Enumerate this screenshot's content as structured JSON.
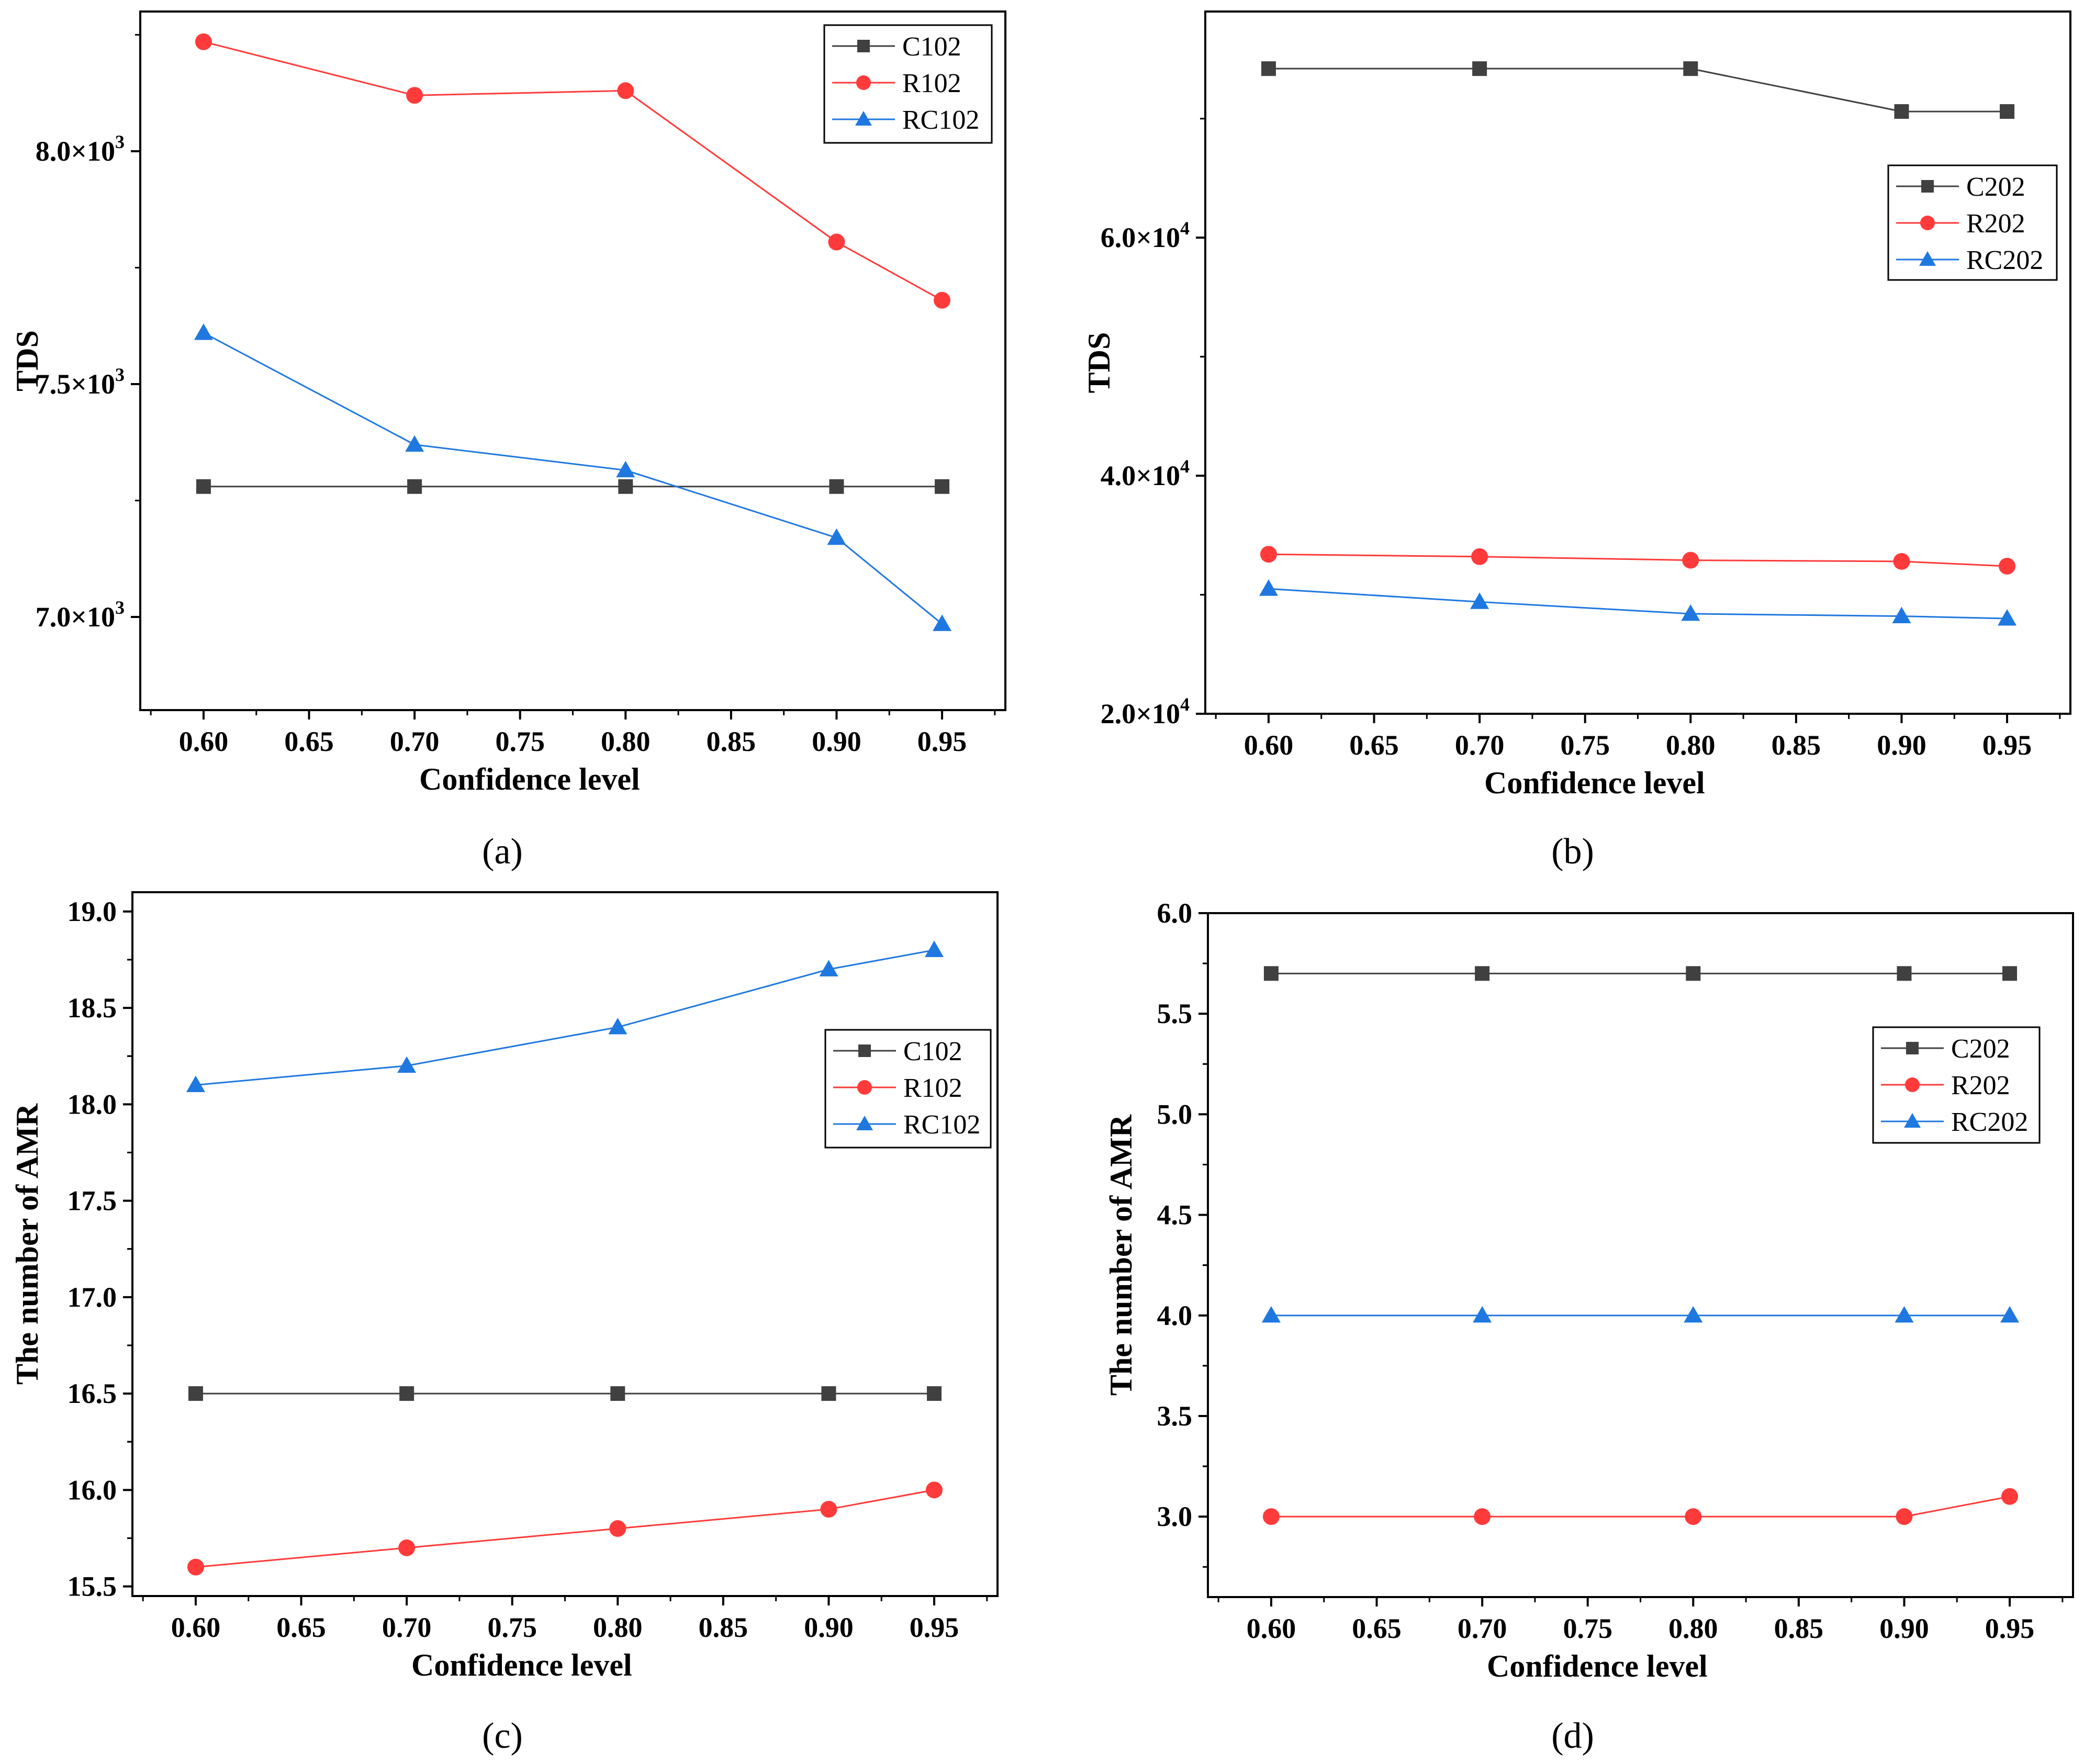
{
  "chart_data": [
    {
      "panel": "(a)",
      "type": "line",
      "xlabel": "Confidence level",
      "ylabel": "TDS",
      "x": [
        0.6,
        0.7,
        0.8,
        0.9,
        0.95
      ],
      "xlim": [
        0.57,
        0.98
      ],
      "xticks": [
        0.6,
        0.65,
        0.7,
        0.75,
        0.8,
        0.85,
        0.9,
        0.95
      ],
      "xtick_labels": [
        "0.60",
        "0.65",
        "0.70",
        "0.75",
        "0.80",
        "0.85",
        "0.90",
        "0.95"
      ],
      "ylim": [
        6800,
        8300
      ],
      "yticks": [
        7000,
        7500,
        8000
      ],
      "ytick_labels": [
        {
          "m": "7.0×10",
          "e": "3"
        },
        {
          "m": "7.5×10",
          "e": "3"
        },
        {
          "m": "8.0×10",
          "e": "3"
        }
      ],
      "legend_position": "top-right",
      "series": [
        {
          "name": "C102",
          "color": "#404040",
          "marker": "square",
          "values": [
            7280,
            7280,
            7280,
            7280,
            7280
          ]
        },
        {
          "name": "R102",
          "color": "#ff3a3a",
          "marker": "circle",
          "values": [
            8235,
            8120,
            8130,
            7805,
            7680
          ]
        },
        {
          "name": "RC102",
          "color": "#1f78e0",
          "marker": "triangle",
          "values": [
            7610,
            7370,
            7315,
            7170,
            6985
          ]
        }
      ]
    },
    {
      "panel": "(b)",
      "type": "line",
      "xlabel": "Confidence level",
      "ylabel": "TDS",
      "x": [
        0.6,
        0.7,
        0.8,
        0.9,
        0.95
      ],
      "xlim": [
        0.57,
        0.98
      ],
      "xticks": [
        0.6,
        0.65,
        0.7,
        0.75,
        0.8,
        0.85,
        0.9,
        0.95
      ],
      "xtick_labels": [
        "0.60",
        "0.65",
        "0.70",
        "0.75",
        "0.80",
        "0.85",
        "0.90",
        "0.95"
      ],
      "ylim": [
        20000,
        79000
      ],
      "yticks": [
        20000,
        40000,
        60000
      ],
      "ytick_labels": [
        {
          "m": "2.0×10",
          "e": "4"
        },
        {
          "m": "4.0×10",
          "e": "4"
        },
        {
          "m": "6.0×10",
          "e": "4"
        }
      ],
      "legend_position": "right",
      "series": [
        {
          "name": "C202",
          "color": "#404040",
          "marker": "square",
          "values": [
            74200,
            74200,
            74200,
            70600,
            70600
          ]
        },
        {
          "name": "R202",
          "color": "#ff3a3a",
          "marker": "circle",
          "values": [
            33400,
            33200,
            32900,
            32800,
            32400
          ]
        },
        {
          "name": "RC202",
          "color": "#1f78e0",
          "marker": "triangle",
          "values": [
            30500,
            29400,
            28400,
            28200,
            28000
          ]
        }
      ]
    },
    {
      "panel": "(c)",
      "type": "line",
      "xlabel": "Confidence level",
      "ylabel": "The number of AMR",
      "x": [
        0.6,
        0.7,
        0.8,
        0.9,
        0.95
      ],
      "xlim": [
        0.57,
        0.98
      ],
      "xticks": [
        0.6,
        0.65,
        0.7,
        0.75,
        0.8,
        0.85,
        0.9,
        0.95
      ],
      "xtick_labels": [
        "0.60",
        "0.65",
        "0.70",
        "0.75",
        "0.80",
        "0.85",
        "0.90",
        "0.95"
      ],
      "ylim": [
        15.45,
        19.1
      ],
      "yticks": [
        15.5,
        16.0,
        16.5,
        17.0,
        17.5,
        18.0,
        18.5,
        19.0
      ],
      "ytick_labels": [
        "15.5",
        "16.0",
        "16.5",
        "17.0",
        "17.5",
        "18.0",
        "18.5",
        "19.0"
      ],
      "legend_position": "right",
      "series": [
        {
          "name": "C102",
          "color": "#404040",
          "marker": "square",
          "values": [
            16.5,
            16.5,
            16.5,
            16.5,
            16.5
          ]
        },
        {
          "name": "R102",
          "color": "#ff3a3a",
          "marker": "circle",
          "values": [
            15.6,
            15.7,
            15.8,
            15.9,
            16.0
          ]
        },
        {
          "name": "RC102",
          "color": "#1f78e0",
          "marker": "triangle",
          "values": [
            18.1,
            18.2,
            18.4,
            18.7,
            18.8
          ]
        }
      ]
    },
    {
      "panel": "(d)",
      "type": "line",
      "xlabel": "Confidence level",
      "ylabel": "The number of AMR",
      "x": [
        0.6,
        0.7,
        0.8,
        0.9,
        0.95
      ],
      "xlim": [
        0.57,
        0.98
      ],
      "xticks": [
        0.6,
        0.65,
        0.7,
        0.75,
        0.8,
        0.85,
        0.9,
        0.95
      ],
      "xtick_labels": [
        "0.60",
        "0.65",
        "0.70",
        "0.75",
        "0.80",
        "0.85",
        "0.90",
        "0.95"
      ],
      "ylim": [
        2.6,
        6.0
      ],
      "yticks": [
        3.0,
        3.5,
        4.0,
        4.5,
        5.0,
        5.5,
        6.0
      ],
      "ytick_labels": [
        "3.0",
        "3.5",
        "4.0",
        "4.5",
        "5.0",
        "5.5",
        "6.0"
      ],
      "legend_position": "right",
      "series": [
        {
          "name": "C202",
          "color": "#404040",
          "marker": "square",
          "values": [
            5.7,
            5.7,
            5.7,
            5.7,
            5.7
          ]
        },
        {
          "name": "R202",
          "color": "#ff3a3a",
          "marker": "circle",
          "values": [
            3.0,
            3.0,
            3.0,
            3.0,
            3.1
          ]
        },
        {
          "name": "RC202",
          "color": "#1f78e0",
          "marker": "triangle",
          "values": [
            4.0,
            4.0,
            4.0,
            4.0,
            4.0
          ]
        }
      ]
    }
  ]
}
